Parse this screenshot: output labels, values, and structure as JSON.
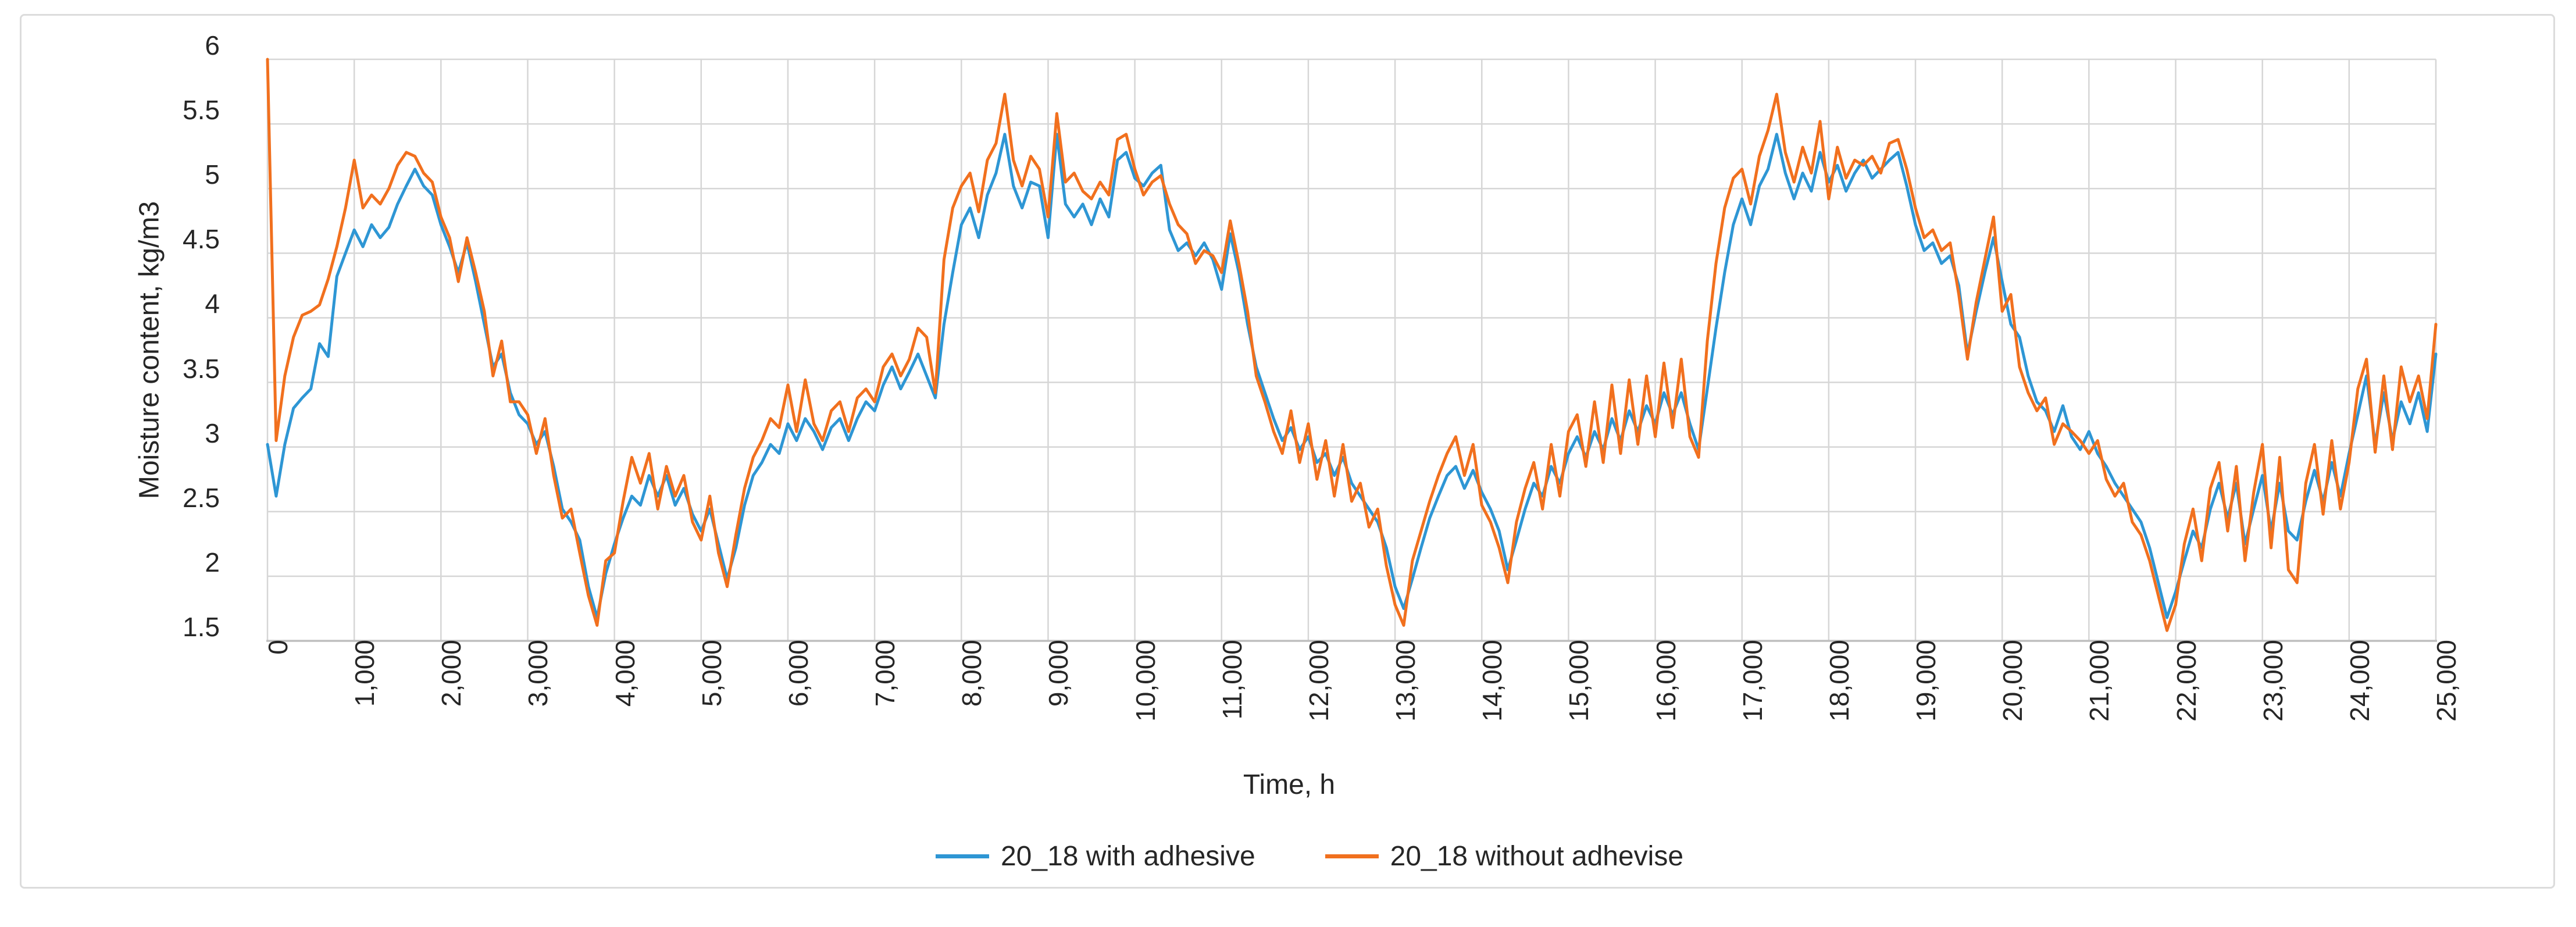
{
  "figure": {
    "y_axis_title": "Moisture content, kg/m3",
    "x_axis_title": "Time, h"
  },
  "chart_data": {
    "type": "line",
    "title": "",
    "xlabel": "Time, h",
    "ylabel": "Moisture content, kg/m3",
    "xlim": [
      0,
      25000
    ],
    "ylim": [
      1.5,
      6.0
    ],
    "grid": true,
    "legend_position": "bottom",
    "axis_color": "#bfbfbf",
    "gridline_color": "#d6d6d6",
    "y_ticks": [
      6,
      5.5,
      5,
      4.5,
      4,
      3.5,
      3,
      2.5,
      2,
      1.5
    ],
    "y_tick_labels": [
      "6",
      "5.5",
      "5",
      "4.5",
      "4",
      "3.5",
      "3",
      "2.5",
      "2",
      "1.5"
    ],
    "x_ticks": [
      0,
      1000,
      2000,
      3000,
      4000,
      5000,
      6000,
      7000,
      8000,
      9000,
      10000,
      11000,
      12000,
      13000,
      14000,
      15000,
      16000,
      17000,
      18000,
      19000,
      20000,
      21000,
      22000,
      23000,
      24000,
      25000
    ],
    "x_tick_labels": [
      "0",
      "1,000",
      "2,000",
      "3,000",
      "4,000",
      "5,000",
      "6,000",
      "7,000",
      "8,000",
      "9,000",
      "10,000",
      "11,000",
      "12,000",
      "13,000",
      "14,000",
      "15,000",
      "16,000",
      "17,000",
      "18,000",
      "19,000",
      "20,000",
      "21,000",
      "22,000",
      "23,000",
      "24,000",
      "25,000"
    ],
    "x_start": 0,
    "x_step": 100,
    "series": [
      {
        "name": "20_18 with adhesive",
        "color": "#2e96d4",
        "values": [
          3.02,
          2.62,
          3.02,
          3.3,
          3.38,
          3.45,
          3.8,
          3.7,
          4.32,
          4.5,
          4.68,
          4.55,
          4.72,
          4.62,
          4.7,
          4.88,
          5.02,
          5.15,
          5.02,
          4.95,
          4.72,
          4.55,
          4.35,
          4.58,
          4.28,
          3.95,
          3.62,
          3.72,
          3.42,
          3.25,
          3.18,
          3.02,
          3.12,
          2.85,
          2.52,
          2.42,
          2.28,
          1.92,
          1.68,
          2.02,
          2.25,
          2.45,
          2.62,
          2.55,
          2.78,
          2.62,
          2.78,
          2.55,
          2.68,
          2.48,
          2.35,
          2.52,
          2.25,
          1.98,
          2.22,
          2.55,
          2.78,
          2.88,
          3.02,
          2.95,
          3.18,
          3.05,
          3.22,
          3.12,
          2.98,
          3.15,
          3.22,
          3.05,
          3.22,
          3.35,
          3.28,
          3.48,
          3.62,
          3.45,
          3.58,
          3.72,
          3.55,
          3.38,
          3.95,
          4.35,
          4.72,
          4.85,
          4.62,
          4.95,
          5.12,
          5.42,
          5.02,
          4.85,
          5.05,
          5.02,
          4.62,
          5.42,
          4.88,
          4.78,
          4.88,
          4.72,
          4.92,
          4.78,
          5.22,
          5.28,
          5.08,
          5.02,
          5.12,
          5.18,
          4.68,
          4.52,
          4.58,
          4.48,
          4.58,
          4.45,
          4.22,
          4.65,
          4.35,
          3.95,
          3.62,
          3.42,
          3.22,
          3.05,
          3.15,
          2.98,
          3.08,
          2.88,
          2.95,
          2.78,
          2.92,
          2.72,
          2.62,
          2.52,
          2.42,
          2.22,
          1.92,
          1.75,
          1.98,
          2.22,
          2.45,
          2.62,
          2.78,
          2.85,
          2.68,
          2.82,
          2.65,
          2.52,
          2.35,
          2.05,
          2.28,
          2.52,
          2.72,
          2.62,
          2.85,
          2.72,
          2.95,
          3.08,
          2.92,
          3.12,
          2.98,
          3.22,
          3.05,
          3.28,
          3.12,
          3.32,
          3.18,
          3.42,
          3.25,
          3.42,
          3.18,
          2.98,
          3.45,
          3.92,
          4.35,
          4.72,
          4.92,
          4.72,
          5.02,
          5.15,
          5.42,
          5.12,
          4.92,
          5.12,
          4.98,
          5.28,
          5.05,
          5.18,
          4.98,
          5.12,
          5.22,
          5.08,
          5.15,
          5.22,
          5.28,
          5.02,
          4.72,
          4.52,
          4.58,
          4.42,
          4.48,
          4.25,
          3.72,
          4.05,
          4.35,
          4.62,
          4.28,
          3.95,
          3.85,
          3.55,
          3.35,
          3.28,
          3.12,
          3.32,
          3.08,
          2.98,
          3.12,
          2.95,
          2.85,
          2.72,
          2.62,
          2.52,
          2.42,
          2.22,
          1.95,
          1.68,
          1.88,
          2.12,
          2.35,
          2.22,
          2.52,
          2.72,
          2.45,
          2.72,
          2.25,
          2.52,
          2.78,
          2.35,
          2.72,
          2.35,
          2.28,
          2.58,
          2.82,
          2.58,
          2.88,
          2.62,
          2.95,
          3.25,
          3.55,
          3.02,
          3.42,
          3.05,
          3.35,
          3.18,
          3.42,
          3.12,
          3.72
        ]
      },
      {
        "name": "20_18 without adhevise",
        "color": "#f1701e",
        "values": [
          6.0,
          3.05,
          3.55,
          3.85,
          4.02,
          4.05,
          4.1,
          4.3,
          4.55,
          4.85,
          5.22,
          4.85,
          4.95,
          4.88,
          5.0,
          5.18,
          5.28,
          5.25,
          5.12,
          5.05,
          4.78,
          4.62,
          4.28,
          4.62,
          4.35,
          4.05,
          3.55,
          3.82,
          3.35,
          3.35,
          3.25,
          2.95,
          3.22,
          2.78,
          2.45,
          2.52,
          2.18,
          1.85,
          1.62,
          2.12,
          2.18,
          2.58,
          2.92,
          2.72,
          2.95,
          2.52,
          2.85,
          2.62,
          2.78,
          2.42,
          2.28,
          2.62,
          2.18,
          1.92,
          2.32,
          2.68,
          2.92,
          3.05,
          3.22,
          3.15,
          3.48,
          3.12,
          3.52,
          3.18,
          3.05,
          3.28,
          3.35,
          3.12,
          3.38,
          3.45,
          3.35,
          3.62,
          3.72,
          3.55,
          3.68,
          3.92,
          3.85,
          3.42,
          4.45,
          4.85,
          5.02,
          5.12,
          4.82,
          5.22,
          5.35,
          5.73,
          5.22,
          5.02,
          5.25,
          5.15,
          4.78,
          5.58,
          5.05,
          5.12,
          4.98,
          4.92,
          5.05,
          4.95,
          5.38,
          5.42,
          5.15,
          4.95,
          5.05,
          5.1,
          4.88,
          4.72,
          4.65,
          4.42,
          4.52,
          4.48,
          4.35,
          4.75,
          4.42,
          4.05,
          3.55,
          3.35,
          3.12,
          2.95,
          3.28,
          2.88,
          3.18,
          2.75,
          3.05,
          2.62,
          3.02,
          2.58,
          2.72,
          2.38,
          2.52,
          2.08,
          1.78,
          1.62,
          2.12,
          2.35,
          2.58,
          2.78,
          2.95,
          3.08,
          2.78,
          3.02,
          2.55,
          2.42,
          2.22,
          1.95,
          2.42,
          2.68,
          2.88,
          2.52,
          3.02,
          2.62,
          3.12,
          3.25,
          2.85,
          3.35,
          2.88,
          3.48,
          2.95,
          3.52,
          3.02,
          3.55,
          3.08,
          3.65,
          3.15,
          3.68,
          3.08,
          2.92,
          3.82,
          4.42,
          4.85,
          5.08,
          5.15,
          4.88,
          5.25,
          5.45,
          5.73,
          5.28,
          5.05,
          5.32,
          5.12,
          5.52,
          4.92,
          5.32,
          5.08,
          5.22,
          5.18,
          5.25,
          5.12,
          5.35,
          5.38,
          5.15,
          4.85,
          4.62,
          4.68,
          4.52,
          4.58,
          4.18,
          3.68,
          4.12,
          4.45,
          4.78,
          4.05,
          4.18,
          3.62,
          3.42,
          3.28,
          3.38,
          3.02,
          3.18,
          3.12,
          3.05,
          2.95,
          3.05,
          2.75,
          2.62,
          2.72,
          2.42,
          2.32,
          2.12,
          1.85,
          1.58,
          1.78,
          2.25,
          2.52,
          2.12,
          2.68,
          2.88,
          2.35,
          2.85,
          2.12,
          2.65,
          3.02,
          2.22,
          2.92,
          2.05,
          1.95,
          2.72,
          3.02,
          2.48,
          3.05,
          2.52,
          2.88,
          3.45,
          3.68,
          2.96,
          3.55,
          2.98,
          3.62,
          3.35,
          3.55,
          3.22,
          3.95
        ]
      }
    ]
  }
}
